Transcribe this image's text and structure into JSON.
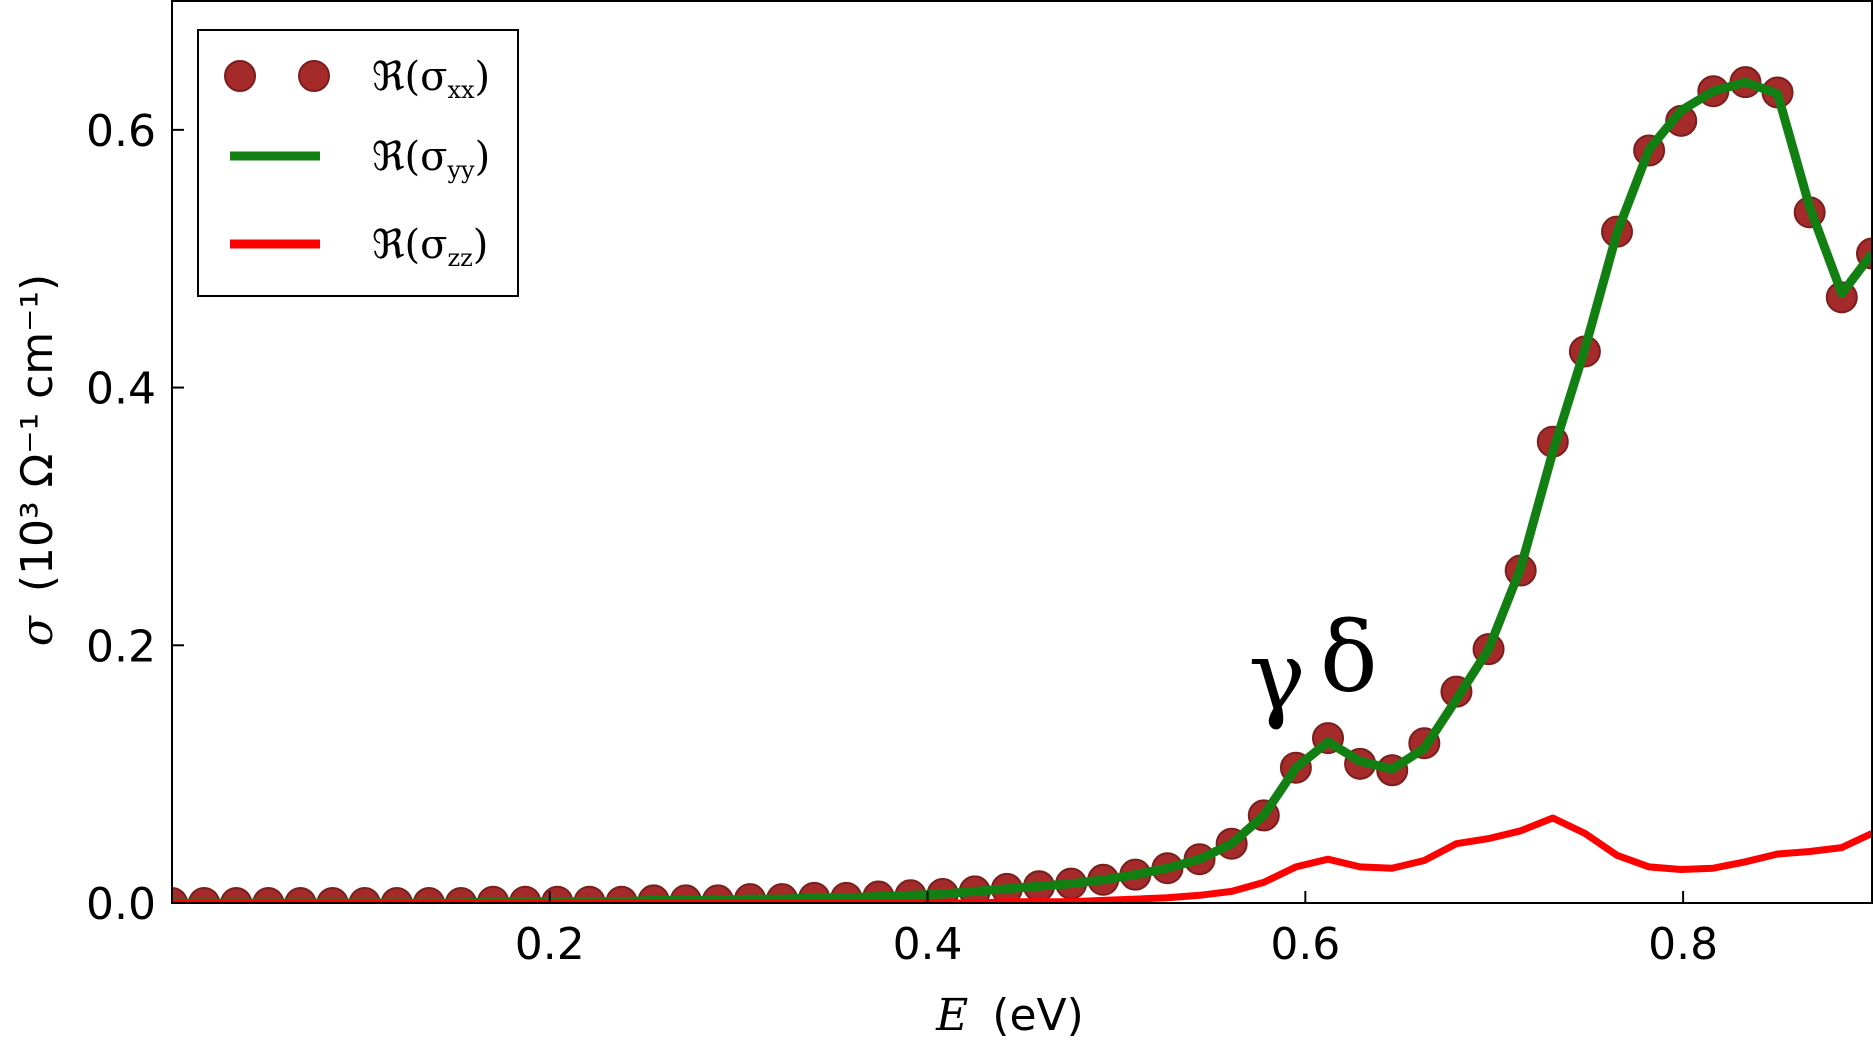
{
  "chart_data": {
    "type": "line",
    "title": "",
    "xlabel_var": "E",
    "xlabel_unit": "(eV)",
    "ylabel_var": "σ",
    "ylabel_unit": "(10³ Ω⁻¹ cm⁻¹)",
    "xlim": [
      0.0,
      0.9
    ],
    "ylim": [
      0.0,
      0.7
    ],
    "xticks": [
      0.2,
      0.4,
      0.6,
      0.8
    ],
    "xtick_labels": [
      "0.2",
      "0.4",
      "0.6",
      "0.8"
    ],
    "yticks": [
      0.0,
      0.2,
      0.4,
      0.6
    ],
    "ytick_labels": [
      "0.0",
      "0.2",
      "0.4",
      "0.6"
    ],
    "legend_position": "top-left",
    "x": [
      0.0,
      0.017,
      0.034,
      0.051,
      0.068,
      0.085,
      0.102,
      0.119,
      0.136,
      0.153,
      0.17,
      0.187,
      0.204,
      0.221,
      0.238,
      0.255,
      0.272,
      0.289,
      0.306,
      0.323,
      0.34,
      0.357,
      0.374,
      0.391,
      0.408,
      0.425,
      0.442,
      0.459,
      0.476,
      0.493,
      0.51,
      0.527,
      0.544,
      0.561,
      0.578,
      0.595,
      0.612,
      0.629,
      0.646,
      0.663,
      0.68,
      0.697,
      0.714,
      0.731,
      0.748,
      0.765,
      0.782,
      0.799,
      0.816,
      0.833,
      0.85,
      0.867,
      0.884,
      0.9
    ],
    "series": [
      {
        "name": "ℜ(σ",
        "sub": "xx",
        "style": "markers",
        "color": "#a52a2a",
        "edge_color": "#7a1e1e",
        "values": [
          0.0,
          0.0,
          0.0,
          0.0,
          0.0,
          0.0,
          0.0,
          0.0,
          0.0,
          0.0,
          0.001,
          0.001,
          0.001,
          0.001,
          0.001,
          0.002,
          0.002,
          0.002,
          0.003,
          0.003,
          0.004,
          0.004,
          0.005,
          0.006,
          0.007,
          0.009,
          0.011,
          0.013,
          0.015,
          0.018,
          0.022,
          0.027,
          0.034,
          0.046,
          0.068,
          0.105,
          0.128,
          0.108,
          0.103,
          0.124,
          0.164,
          0.197,
          0.258,
          0.358,
          0.428,
          0.521,
          0.584,
          0.607,
          0.63,
          0.637,
          0.629,
          0.536,
          0.47,
          0.504
        ]
      },
      {
        "name": "ℜ(σ",
        "sub": "yy",
        "style": "line",
        "color": "#127f12",
        "values": [
          0.0,
          0.0,
          0.0,
          0.0,
          0.0,
          0.0,
          0.0,
          0.0,
          0.0,
          0.0,
          0.001,
          0.001,
          0.001,
          0.001,
          0.001,
          0.002,
          0.002,
          0.002,
          0.003,
          0.003,
          0.004,
          0.004,
          0.005,
          0.006,
          0.007,
          0.009,
          0.011,
          0.013,
          0.015,
          0.018,
          0.022,
          0.027,
          0.034,
          0.046,
          0.068,
          0.105,
          0.125,
          0.11,
          0.104,
          0.12,
          0.158,
          0.197,
          0.26,
          0.35,
          0.43,
          0.52,
          0.585,
          0.615,
          0.63,
          0.637,
          0.628,
          0.54,
          0.473,
          0.504
        ]
      },
      {
        "name": "ℜ(σ",
        "sub": "zz",
        "style": "line",
        "color": "#ff0000",
        "values": [
          0.0,
          0.0,
          0.0,
          0.0,
          0.0,
          0.0,
          0.0,
          0.0,
          0.0,
          0.0,
          0.0,
          0.0,
          0.0,
          0.0,
          0.0,
          0.0,
          0.0,
          0.0,
          0.0,
          0.0,
          0.0,
          0.0,
          0.0,
          0.0,
          0.0,
          0.0,
          0.001,
          0.001,
          0.001,
          0.002,
          0.003,
          0.004,
          0.006,
          0.009,
          0.016,
          0.028,
          0.034,
          0.028,
          0.027,
          0.033,
          0.046,
          0.05,
          0.056,
          0.066,
          0.054,
          0.037,
          0.028,
          0.026,
          0.027,
          0.032,
          0.038,
          0.04,
          0.043,
          0.054
        ]
      }
    ],
    "annotations": [
      {
        "text": "γ",
        "x": 0.585,
        "y": 0.15
      },
      {
        "text": "δ",
        "x": 0.623,
        "y": 0.165
      }
    ]
  }
}
